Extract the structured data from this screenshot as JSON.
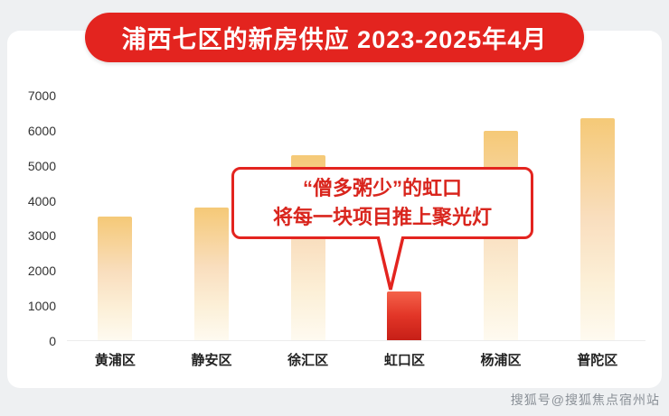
{
  "title": "浦西七区的新房供应 2023-2025年4月",
  "annotation": {
    "line1": "“僧多粥少”的虹口",
    "line2": "将每一块项目推上聚光灯"
  },
  "watermark": "搜狐号@搜狐焦点宿州站",
  "colors": {
    "accent_red": "#e3241f",
    "bar_gold_top": "#f5c977",
    "bar_gold_bottom": "#fefaf0",
    "bar_red_top": "#f4624a",
    "bar_red_bottom": "#c71f17",
    "page_background": "#eef0f2"
  },
  "chart_data": {
    "type": "bar",
    "title": "浦西七区的新房供应 2023-2025年4月",
    "categories": [
      "黄浦区",
      "静安区",
      "徐汇区",
      "虹口区",
      "杨浦区",
      "普陀区"
    ],
    "values": [
      3550,
      3800,
      5300,
      1400,
      6000,
      6350
    ],
    "highlight_index": 3,
    "highlight_label": "虹口区",
    "xlabel": "",
    "ylabel": "",
    "ylim": [
      0,
      7000
    ],
    "yticks": [
      7000,
      6000,
      5000,
      4000,
      3000,
      2000,
      1000,
      0
    ],
    "grid": false,
    "legend": false,
    "annotation_target": "虹口区"
  }
}
